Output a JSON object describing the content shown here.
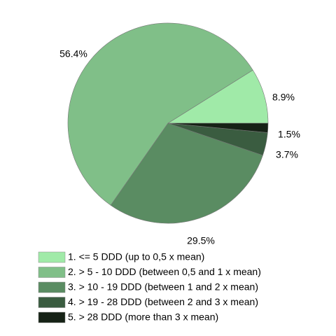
{
  "chart_data": {
    "type": "pie",
    "categories": [
      "1. <= 5 DDD (up to 0,5 x mean)",
      "2. > 5 - 10 DDD (between 0,5 and 1 x mean)",
      "3. > 10 - 19 DDD (between 1 and 2 x mean)",
      "4. > 19 - 28 DDD (between 2 and 3 x mean)",
      "5. > 28 DDD (more than 3 x mean)"
    ],
    "values": [
      8.9,
      56.4,
      29.5,
      3.7,
      1.5
    ],
    "value_labels": [
      "8.9%",
      "56.4%",
      "29.5%",
      "3.7%",
      "1.5%"
    ],
    "colors": [
      "#a0eaa8",
      "#80bf88",
      "#5a8c62",
      "#3a5c40",
      "#162216"
    ]
  }
}
